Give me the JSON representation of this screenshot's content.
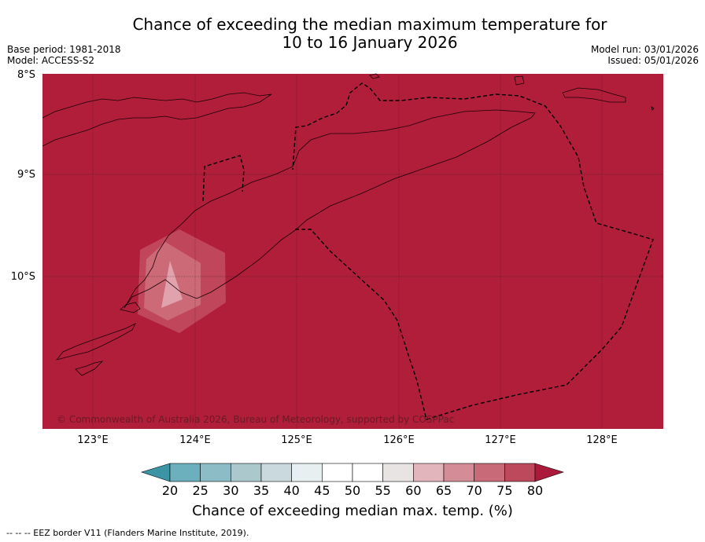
{
  "title_line1": "Chance of exceeding the median maximum temperature for",
  "title_line2": "10 to 16 January 2026",
  "base_period": "Base period: 1981-2018",
  "model": "Model: ACCESS-S2",
  "model_run": "Model run: 03/01/2026",
  "issued": "Issued: 05/01/2026",
  "copyright": "© Commonwealth of Australia 2026, Bureau of Meteorology, supported by COSPPac",
  "footer": "--  --  -- EEZ border V11 (Flanders Marine Institute, 2019).",
  "lat_labels": [
    "8°S",
    "9°S",
    "10°S"
  ],
  "lon_labels": [
    "123°E",
    "124°E",
    "125°E",
    "126°E",
    "127°E",
    "128°E"
  ],
  "colorbar": {
    "title": "Chance of exceeding median max. temp. (%)",
    "ticks": [
      "20",
      "25",
      "30",
      "35",
      "40",
      "45",
      "50",
      "55",
      "60",
      "65",
      "70",
      "75",
      "80"
    ],
    "colors": [
      "#4e9fae",
      "#6cb0be",
      "#8cbcc6",
      "#abc9cd",
      "#c9d9dd",
      "#e8eff1",
      "#ffffff",
      "#ffffff",
      "#e8e4e4",
      "#e2b4bc",
      "#d48c97",
      "#c86a78",
      "#bd4a5c",
      "#ab1a3a"
    ],
    "under_color": "#3b95a4",
    "over_color": "#ab1a3a"
  },
  "map_background": "#b01e3a"
}
